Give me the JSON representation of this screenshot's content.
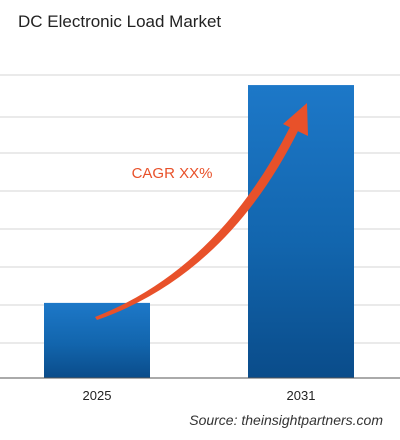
{
  "chart_data": {
    "type": "bar",
    "title": "DC Electronic Load Market",
    "categories": [
      "2025",
      "2031"
    ],
    "values": [
      1,
      3.9
    ],
    "ylim": [
      0,
      4.5
    ],
    "grid": true,
    "annotation": "CAGR XX%",
    "source": "Source: theinsightpartners.com",
    "colors": {
      "bar_top": "#1d78c8",
      "bar_mid": "#1265ad",
      "bar_bottom": "#0a4c8a",
      "arrow": "#e8512a",
      "annotation": "#e8512a",
      "grid": "#d6d6d6",
      "axis": "#555555"
    }
  }
}
